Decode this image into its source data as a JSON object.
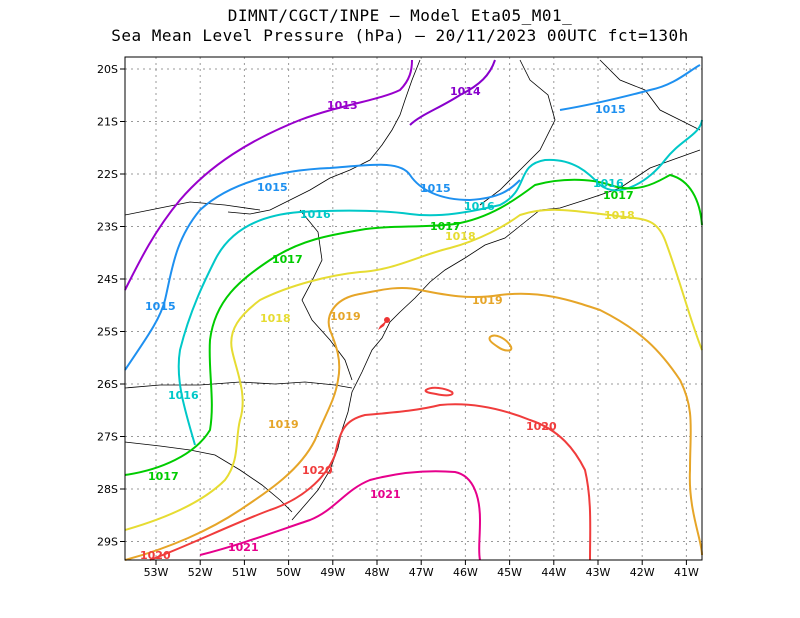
{
  "header": {
    "line1": "DIMNT/CGCT/INPE –  Model Eta05_M01_",
    "line2": "Sea Mean Level Pressure (hPa) – 20/11/2023 00UTC fct=130h"
  },
  "axes": {
    "x_ticks": [
      "53W",
      "52W",
      "51W",
      "50W",
      "49W",
      "48W",
      "47W",
      "46W",
      "45W",
      "44W",
      "43W",
      "42W",
      "41W"
    ],
    "y_ticks": [
      "20S",
      "21S",
      "22S",
      "23S",
      "24S",
      "25S",
      "26S",
      "27S",
      "28S",
      "29S"
    ]
  },
  "colors": {
    "1013": "#9900cc",
    "1014": "#8800cc",
    "1015": "#1e90f0",
    "1016": "#00c8c8",
    "1017": "#00cc00",
    "1018": "#e6dc32",
    "1019": "#e6a528",
    "1020": "#f03c3c",
    "1021": "#e6008c",
    "coast": "#000000",
    "grid": "#999999"
  },
  "contour_labels": {
    "l1013": "1013",
    "l1014": "1014",
    "l1015a": "1015",
    "l1015b": "1015",
    "l1015c": "1015",
    "l1015d": "1015",
    "l1016a": "1016",
    "l1016b": "1016",
    "l1016c": "1016",
    "l1016d": "1016",
    "l1017a": "1017",
    "l1017b": "1017",
    "l1017c": "1017",
    "l1017d": "1017",
    "l1018a": "1018",
    "l1018b": "1018",
    "l1018c": "1018",
    "l1019a": "1019",
    "l1019b": "1019",
    "l1019c": "1019",
    "l1020a": "1020",
    "l1020b": "1020",
    "l1020c": "1020",
    "l1021a": "1021",
    "l1021b": "1021"
  }
}
